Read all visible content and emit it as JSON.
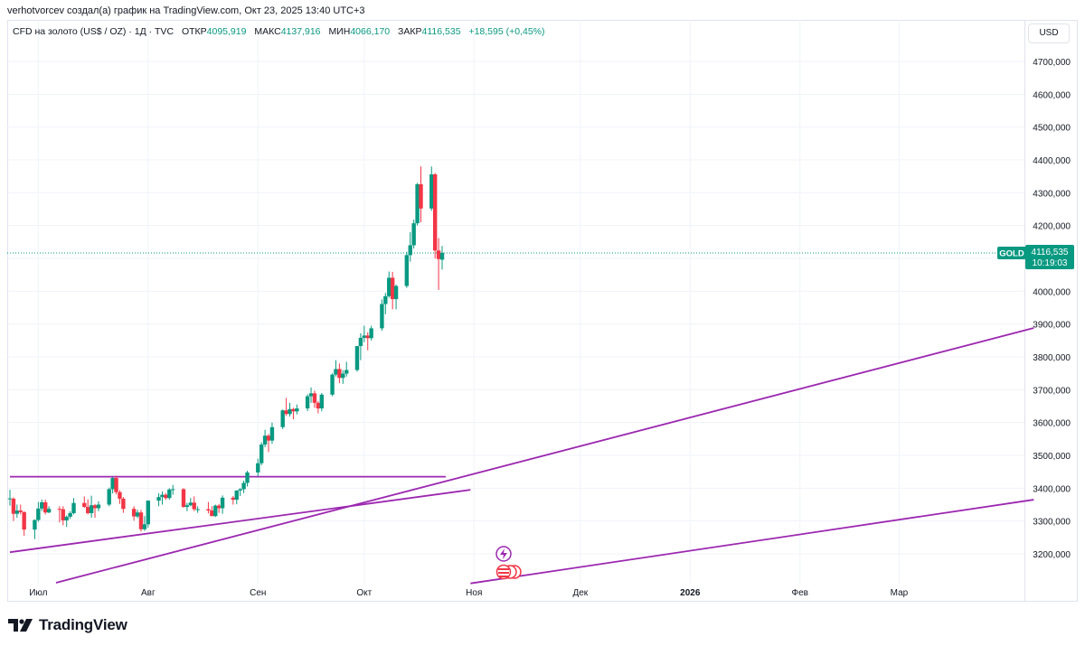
{
  "header": {
    "attribution": "verhotvorcev создал(а) график на TradingView.com, Окт 23, 2025 13:40 UTC+3"
  },
  "legend": {
    "symbol": "CFD на золото (US$ / OZ) · 1Д · TVC",
    "open_label": "ОТКР",
    "open_value": "4095,919",
    "high_label": "МАКС",
    "high_value": "4137,916",
    "low_label": "МИН",
    "low_value": "4066,170",
    "close_label": "ЗАКР",
    "close_value": "4116,535",
    "change": "+18,595 (+0,45%)"
  },
  "currency_button": "USD",
  "price_tag": {
    "ticker": "GOLD",
    "price": "4116,535",
    "countdown": "10:19:03"
  },
  "footer": {
    "brand": "TradingView"
  },
  "colors": {
    "up": "#089981",
    "down": "#f23645",
    "trendline": "#9c27b0",
    "grid": "#f0f3fa",
    "text": "#131722"
  },
  "chart_data": {
    "type": "candlestick",
    "title": "CFD на золото (US$ / OZ) · 1Д · TVC",
    "y_axis": {
      "range": [
        3100,
        4800
      ],
      "ticks": [
        3200,
        3300,
        3400,
        3500,
        3600,
        3700,
        3800,
        3900,
        4000,
        4100,
        4200,
        4300,
        4400,
        4500,
        4600,
        4700
      ],
      "tick_labels": [
        "3200,000",
        "3300,000",
        "3400,000",
        "3500,000",
        "3600,000",
        "3700,000",
        "3800,000",
        "3900,000",
        "4000,000",
        "4100,000",
        "4200,000",
        "4300,000",
        "4400,000",
        "4500,000",
        "4600,000",
        "4700,000"
      ]
    },
    "x_axis": {
      "start_date": "2025-06-23",
      "end_date": "2026-03-31",
      "labels": [
        {
          "date": "2025-07-01",
          "text": "Июл",
          "bold": false
        },
        {
          "date": "2025-08-01",
          "text": "Авг",
          "bold": false
        },
        {
          "date": "2025-09-01",
          "text": "Сен",
          "bold": false
        },
        {
          "date": "2025-10-01",
          "text": "Окт",
          "bold": false
        },
        {
          "date": "2025-11-01",
          "text": "Ноя",
          "bold": false
        },
        {
          "date": "2025-12-01",
          "text": "Дек",
          "bold": false
        },
        {
          "date": "2026-01-01",
          "text": "2026",
          "bold": true
        },
        {
          "date": "2026-02-01",
          "text": "Фев",
          "bold": false
        },
        {
          "date": "2026-03-01",
          "text": "Мар",
          "bold": false
        }
      ]
    },
    "current_price": 4116.535,
    "candles": [
      {
        "date": "2025-06-23",
        "o": 3368,
        "h": 3395,
        "l": 3347,
        "c": 3369
      },
      {
        "date": "2025-06-24",
        "o": 3368,
        "h": 3372,
        "l": 3300,
        "c": 3322
      },
      {
        "date": "2025-06-25",
        "o": 3322,
        "h": 3350,
        "l": 3310,
        "c": 3332
      },
      {
        "date": "2025-06-26",
        "o": 3332,
        "h": 3350,
        "l": 3320,
        "c": 3327
      },
      {
        "date": "2025-06-27",
        "o": 3327,
        "h": 3330,
        "l": 3255,
        "c": 3274
      },
      {
        "date": "2025-06-30",
        "o": 3274,
        "h": 3305,
        "l": 3245,
        "c": 3303
      },
      {
        "date": "2025-07-01",
        "o": 3303,
        "h": 3358,
        "l": 3298,
        "c": 3338
      },
      {
        "date": "2025-07-02",
        "o": 3338,
        "h": 3365,
        "l": 3330,
        "c": 3357
      },
      {
        "date": "2025-07-03",
        "o": 3357,
        "h": 3365,
        "l": 3320,
        "c": 3326
      },
      {
        "date": "2025-07-04",
        "o": 3326,
        "h": 3345,
        "l": 3324,
        "c": 3337
      },
      {
        "date": "2025-07-07",
        "o": 3337,
        "h": 3345,
        "l": 3296,
        "c": 3336
      },
      {
        "date": "2025-07-08",
        "o": 3336,
        "h": 3345,
        "l": 3287,
        "c": 3302
      },
      {
        "date": "2025-07-09",
        "o": 3302,
        "h": 3317,
        "l": 3282,
        "c": 3313
      },
      {
        "date": "2025-07-10",
        "o": 3313,
        "h": 3330,
        "l": 3306,
        "c": 3324
      },
      {
        "date": "2025-07-11",
        "o": 3324,
        "h": 3370,
        "l": 3320,
        "c": 3355
      },
      {
        "date": "2025-07-14",
        "o": 3355,
        "h": 3375,
        "l": 3340,
        "c": 3343
      },
      {
        "date": "2025-07-15",
        "o": 3343,
        "h": 3366,
        "l": 3320,
        "c": 3324
      },
      {
        "date": "2025-07-16",
        "o": 3324,
        "h": 3377,
        "l": 3310,
        "c": 3348
      },
      {
        "date": "2025-07-17",
        "o": 3348,
        "h": 3352,
        "l": 3310,
        "c": 3339
      },
      {
        "date": "2025-07-18",
        "o": 3339,
        "h": 3360,
        "l": 3330,
        "c": 3350
      },
      {
        "date": "2025-07-21",
        "o": 3350,
        "h": 3402,
        "l": 3345,
        "c": 3397
      },
      {
        "date": "2025-07-22",
        "o": 3397,
        "h": 3433,
        "l": 3384,
        "c": 3431
      },
      {
        "date": "2025-07-23",
        "o": 3431,
        "h": 3438,
        "l": 3381,
        "c": 3388
      },
      {
        "date": "2025-07-24",
        "o": 3388,
        "h": 3394,
        "l": 3352,
        "c": 3368
      },
      {
        "date": "2025-07-25",
        "o": 3368,
        "h": 3373,
        "l": 3325,
        "c": 3337
      },
      {
        "date": "2025-07-28",
        "o": 3337,
        "h": 3345,
        "l": 3301,
        "c": 3314
      },
      {
        "date": "2025-07-29",
        "o": 3314,
        "h": 3334,
        "l": 3309,
        "c": 3326
      },
      {
        "date": "2025-07-30",
        "o": 3326,
        "h": 3334,
        "l": 3268,
        "c": 3275
      },
      {
        "date": "2025-07-31",
        "o": 3275,
        "h": 3315,
        "l": 3270,
        "c": 3290
      },
      {
        "date": "2025-08-01",
        "o": 3290,
        "h": 3363,
        "l": 3280,
        "c": 3362
      },
      {
        "date": "2025-08-04",
        "o": 3362,
        "h": 3385,
        "l": 3345,
        "c": 3373
      },
      {
        "date": "2025-08-05",
        "o": 3373,
        "h": 3390,
        "l": 3350,
        "c": 3380
      },
      {
        "date": "2025-08-06",
        "o": 3380,
        "h": 3385,
        "l": 3365,
        "c": 3370
      },
      {
        "date": "2025-08-07",
        "o": 3370,
        "h": 3400,
        "l": 3365,
        "c": 3396
      },
      {
        "date": "2025-08-08",
        "o": 3396,
        "h": 3410,
        "l": 3380,
        "c": 3397
      },
      {
        "date": "2025-08-11",
        "o": 3397,
        "h": 3400,
        "l": 3340,
        "c": 3343
      },
      {
        "date": "2025-08-12",
        "o": 3343,
        "h": 3355,
        "l": 3330,
        "c": 3348
      },
      {
        "date": "2025-08-13",
        "o": 3348,
        "h": 3370,
        "l": 3345,
        "c": 3356
      },
      {
        "date": "2025-08-14",
        "o": 3356,
        "h": 3375,
        "l": 3330,
        "c": 3336
      },
      {
        "date": "2025-08-15",
        "o": 3336,
        "h": 3345,
        "l": 3325,
        "c": 3336
      },
      {
        "date": "2025-08-18",
        "o": 3336,
        "h": 3358,
        "l": 3323,
        "c": 3332
      },
      {
        "date": "2025-08-19",
        "o": 3332,
        "h": 3345,
        "l": 3315,
        "c": 3315
      },
      {
        "date": "2025-08-20",
        "o": 3315,
        "h": 3350,
        "l": 3312,
        "c": 3347
      },
      {
        "date": "2025-08-21",
        "o": 3347,
        "h": 3352,
        "l": 3325,
        "c": 3339
      },
      {
        "date": "2025-08-22",
        "o": 3339,
        "h": 3378,
        "l": 3322,
        "c": 3371
      },
      {
        "date": "2025-08-25",
        "o": 3371,
        "h": 3376,
        "l": 3350,
        "c": 3365
      },
      {
        "date": "2025-08-26",
        "o": 3365,
        "h": 3393,
        "l": 3351,
        "c": 3393
      },
      {
        "date": "2025-08-27",
        "o": 3393,
        "h": 3400,
        "l": 3376,
        "c": 3397
      },
      {
        "date": "2025-08-28",
        "o": 3397,
        "h": 3423,
        "l": 3385,
        "c": 3416
      },
      {
        "date": "2025-08-29",
        "o": 3416,
        "h": 3453,
        "l": 3405,
        "c": 3448
      },
      {
        "date": "2025-09-01",
        "o": 3448,
        "h": 3490,
        "l": 3436,
        "c": 3476
      },
      {
        "date": "2025-09-02",
        "o": 3476,
        "h": 3540,
        "l": 3470,
        "c": 3533
      },
      {
        "date": "2025-09-03",
        "o": 3533,
        "h": 3578,
        "l": 3525,
        "c": 3560
      },
      {
        "date": "2025-09-04",
        "o": 3560,
        "h": 3565,
        "l": 3510,
        "c": 3545
      },
      {
        "date": "2025-09-05",
        "o": 3545,
        "h": 3600,
        "l": 3535,
        "c": 3586
      },
      {
        "date": "2025-09-08",
        "o": 3586,
        "h": 3640,
        "l": 3580,
        "c": 3637
      },
      {
        "date": "2025-09-09",
        "o": 3637,
        "h": 3675,
        "l": 3620,
        "c": 3626
      },
      {
        "date": "2025-09-10",
        "o": 3626,
        "h": 3660,
        "l": 3618,
        "c": 3641
      },
      {
        "date": "2025-09-11",
        "o": 3641,
        "h": 3645,
        "l": 3610,
        "c": 3634
      },
      {
        "date": "2025-09-12",
        "o": 3634,
        "h": 3655,
        "l": 3625,
        "c": 3643
      },
      {
        "date": "2025-09-15",
        "o": 3643,
        "h": 3686,
        "l": 3635,
        "c": 3680
      },
      {
        "date": "2025-09-16",
        "o": 3680,
        "h": 3707,
        "l": 3660,
        "c": 3689
      },
      {
        "date": "2025-09-17",
        "o": 3689,
        "h": 3697,
        "l": 3645,
        "c": 3660
      },
      {
        "date": "2025-09-18",
        "o": 3660,
        "h": 3665,
        "l": 3628,
        "c": 3643
      },
      {
        "date": "2025-09-19",
        "o": 3643,
        "h": 3690,
        "l": 3634,
        "c": 3685
      },
      {
        "date": "2025-09-22",
        "o": 3685,
        "h": 3750,
        "l": 3680,
        "c": 3746
      },
      {
        "date": "2025-09-23",
        "o": 3746,
        "h": 3790,
        "l": 3740,
        "c": 3763
      },
      {
        "date": "2025-09-24",
        "o": 3763,
        "h": 3780,
        "l": 3720,
        "c": 3736
      },
      {
        "date": "2025-09-25",
        "o": 3736,
        "h": 3760,
        "l": 3718,
        "c": 3749
      },
      {
        "date": "2025-09-26",
        "o": 3749,
        "h": 3785,
        "l": 3740,
        "c": 3760
      },
      {
        "date": "2025-09-29",
        "o": 3760,
        "h": 3830,
        "l": 3755,
        "c": 3833
      },
      {
        "date": "2025-09-30",
        "o": 3833,
        "h": 3872,
        "l": 3790,
        "c": 3858
      },
      {
        "date": "2025-10-01",
        "o": 3858,
        "h": 3895,
        "l": 3845,
        "c": 3865
      },
      {
        "date": "2025-10-02",
        "o": 3865,
        "h": 3875,
        "l": 3820,
        "c": 3857
      },
      {
        "date": "2025-10-03",
        "o": 3857,
        "h": 3895,
        "l": 3850,
        "c": 3887
      },
      {
        "date": "2025-10-06",
        "o": 3887,
        "h": 3975,
        "l": 3880,
        "c": 3961
      },
      {
        "date": "2025-10-07",
        "o": 3961,
        "h": 3995,
        "l": 3930,
        "c": 3985
      },
      {
        "date": "2025-10-08",
        "o": 3985,
        "h": 4060,
        "l": 3980,
        "c": 4041
      },
      {
        "date": "2025-10-09",
        "o": 4041,
        "h": 4059,
        "l": 3945,
        "c": 3976
      },
      {
        "date": "2025-10-10",
        "o": 3976,
        "h": 4020,
        "l": 3945,
        "c": 4016
      },
      {
        "date": "2025-10-13",
        "o": 4016,
        "h": 4120,
        "l": 4010,
        "c": 4110
      },
      {
        "date": "2025-10-14",
        "o": 4110,
        "h": 4180,
        "l": 4090,
        "c": 4140
      },
      {
        "date": "2025-10-15",
        "o": 4140,
        "h": 4218,
        "l": 4130,
        "c": 4207
      },
      {
        "date": "2025-10-16",
        "o": 4207,
        "h": 4330,
        "l": 4200,
        "c": 4326
      },
      {
        "date": "2025-10-17",
        "o": 4326,
        "h": 4380,
        "l": 4210,
        "c": 4252
      },
      {
        "date": "2025-10-20",
        "o": 4252,
        "h": 4380,
        "l": 4245,
        "c": 4356
      },
      {
        "date": "2025-10-21",
        "o": 4356,
        "h": 4360,
        "l": 4100,
        "c": 4124
      },
      {
        "date": "2025-10-22",
        "o": 4124,
        "h": 4162,
        "l": 4004,
        "c": 4098
      },
      {
        "date": "2025-10-23",
        "o": 4096,
        "h": 4138,
        "l": 4066,
        "c": 4117
      }
    ],
    "trendlines": [
      {
        "name": "horizontal-resistance",
        "from": {
          "date": "2025-06-23",
          "price": 3435
        },
        "to": {
          "date": "2025-10-24",
          "price": 3435
        }
      },
      {
        "name": "lower-support",
        "from": {
          "date": "2025-06-23",
          "price": 3205
        },
        "to": {
          "date": "2025-10-31",
          "price": 3395
        }
      },
      {
        "name": "long-rising-trendline",
        "from": {
          "date": "2025-07-06",
          "price": 3112
        },
        "to": {
          "date": "2026-04-08",
          "price": 3888
        }
      },
      {
        "name": "projected-channel-line",
        "from": {
          "date": "2025-10-31",
          "price": 3110
        },
        "to": {
          "date": "2026-04-08",
          "price": 3365
        }
      }
    ]
  }
}
